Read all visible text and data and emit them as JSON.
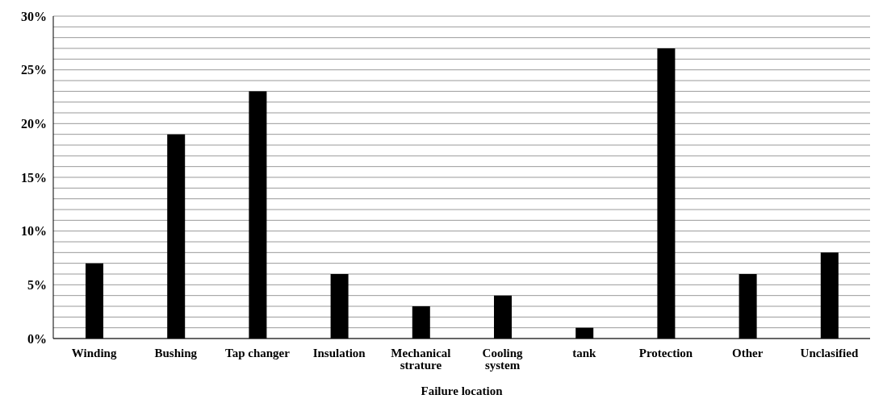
{
  "chart_data": {
    "type": "bar",
    "xlabel": "Failure location",
    "categories": [
      "Winding",
      "Bushing",
      "Tap changer",
      "Insulation",
      "Mechanical strature",
      "Cooling system",
      "tank",
      "Protection",
      "Other",
      "Unclasified"
    ],
    "values": [
      7,
      19,
      23,
      6,
      3,
      4,
      1,
      27,
      6,
      8
    ],
    "color": "#000000",
    "ylim": [
      0,
      30
    ],
    "yticks": [
      {
        "value": 0,
        "label": "0%"
      },
      {
        "value": 1,
        "label": null
      },
      {
        "value": 2,
        "label": null
      },
      {
        "value": 3,
        "label": null
      },
      {
        "value": 4,
        "label": null
      },
      {
        "value": 5,
        "label": "5%"
      },
      {
        "value": 6,
        "label": null
      },
      {
        "value": 7,
        "label": null
      },
      {
        "value": 8,
        "label": null
      },
      {
        "value": 9,
        "label": null
      },
      {
        "value": 10,
        "label": "10%"
      },
      {
        "value": 11,
        "label": null
      },
      {
        "value": 12,
        "label": null
      },
      {
        "value": 13,
        "label": null
      },
      {
        "value": 14,
        "label": null
      },
      {
        "value": 15,
        "label": "15%"
      },
      {
        "value": 16,
        "label": null
      },
      {
        "value": 17,
        "label": null
      },
      {
        "value": 18,
        "label": null
      },
      {
        "value": 19,
        "label": null
      },
      {
        "value": 20,
        "label": "20%"
      },
      {
        "value": 21,
        "label": null
      },
      {
        "value": 22,
        "label": null
      },
      {
        "value": 23,
        "label": null
      },
      {
        "value": 24,
        "label": null
      },
      {
        "value": 25,
        "label": "25%"
      },
      {
        "value": 26,
        "label": null
      },
      {
        "value": 27,
        "label": null
      },
      {
        "value": 28,
        "label": null
      },
      {
        "value": 29,
        "label": null
      },
      {
        "value": 30,
        "label": "30%"
      }
    ],
    "grid": "y",
    "legend": false
  }
}
